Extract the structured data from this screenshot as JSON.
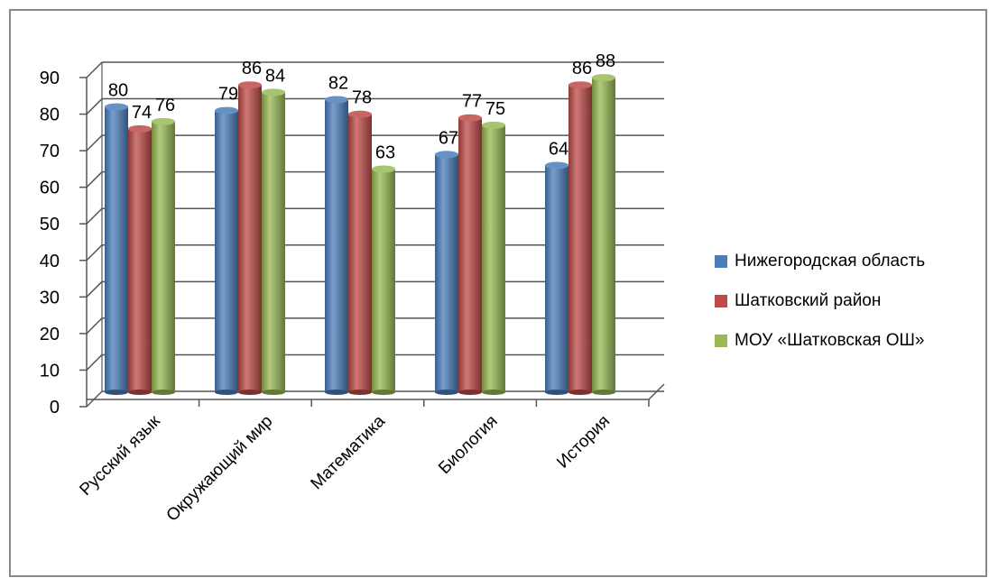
{
  "chart_data": {
    "type": "bar",
    "categories": [
      "Русский язык",
      "Окружающий мир",
      "Математика",
      "Биология",
      "История"
    ],
    "series": [
      {
        "name": "Нижегородская область",
        "values": [
          80,
          79,
          82,
          67,
          64
        ],
        "color": "#4a7ebb"
      },
      {
        "name": "Шатковский район",
        "values": [
          74,
          86,
          78,
          77,
          86
        ],
        "color": "#be4b48"
      },
      {
        "name": "МОУ «Шатковская ОШ»",
        "values": [
          76,
          84,
          63,
          75,
          88
        ],
        "color": "#98b954"
      }
    ],
    "yticks": [
      "0",
      "10",
      "20",
      "30",
      "40",
      "50",
      "60",
      "70",
      "80",
      "90"
    ],
    "ylim": [
      0,
      90
    ],
    "grid": true,
    "legend_position": "right",
    "style": "3d-cylinder"
  }
}
